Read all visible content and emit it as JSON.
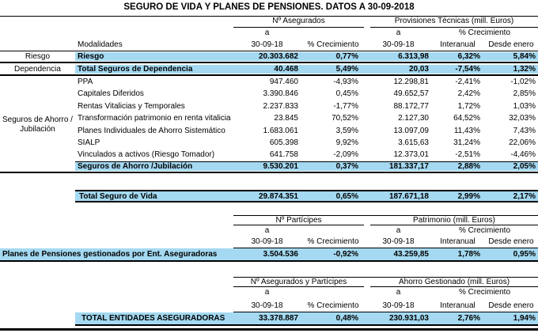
{
  "title": "SEGURO DE VIDA Y PLANES DE PENSIONES. DATOS A 30-09-2018",
  "colors": {
    "highlight": "#a4d9f1"
  },
  "columns": {
    "a": "a",
    "date": "30-09-18",
    "growth": "% Crecimiento",
    "interannual": "Interanual",
    "since_january": "Desde enero",
    "modalities": "Modalidades"
  },
  "life_table": {
    "group1": "Nº Asegurados",
    "group2": "Provisiones Técnicas (mill. Euros)",
    "side_labels": {
      "savings_line1": "Seguros de Ahorro /",
      "savings_line2": "Jubilación"
    },
    "rows": [
      {
        "side": "Riesgo",
        "label": "Riesgo",
        "highlight": true,
        "values": [
          "20.303.682",
          "0,77%",
          "6.313,98",
          "6,32%",
          "5,84%"
        ]
      },
      {
        "side": "Dependencia",
        "label": "Total Seguros de Dependencia",
        "highlight": true,
        "values": [
          "40.468",
          "5,49%",
          "20,03",
          "-7,54%",
          "1,32%"
        ]
      },
      {
        "label": "PPA",
        "values": [
          "947.460",
          "-4,93%",
          "12.298,81",
          "-2,41%",
          "-1,02%"
        ]
      },
      {
        "label": "Capitales Diferidos",
        "values": [
          "3.390.846",
          "0,45%",
          "49.652,57",
          "2,42%",
          "2,85%"
        ]
      },
      {
        "label": "Rentas Vitalicias y Temporales",
        "values": [
          "2.237.833",
          "-1,77%",
          "88.172,77",
          "1,72%",
          "1,03%"
        ]
      },
      {
        "label": "Transformación patrimonio en renta vitalicia",
        "values": [
          "23.845",
          "70,52%",
          "2.127,30",
          "64,52%",
          "32,03%"
        ]
      },
      {
        "label": "Planes Individuales de Ahorro Sistemático",
        "values": [
          "1.683.061",
          "3,59%",
          "13.097,09",
          "11,43%",
          "7,43%"
        ]
      },
      {
        "label": "SIALP",
        "values": [
          "605.398",
          "9,92%",
          "3.615,63",
          "31,24%",
          "22,06%"
        ]
      },
      {
        "label": "Vinculados a activos (Riesgo Tomador)",
        "values": [
          "641.758",
          "-2,09%",
          "12.373,01",
          "-2,51%",
          "-4,46%"
        ]
      },
      {
        "label": "Seguros de Ahorro /Jubilación",
        "highlight": true,
        "values": [
          "9.530.201",
          "0,37%",
          "181.337,17",
          "2,88%",
          "2,05%"
        ]
      }
    ],
    "total": {
      "label": "Total Seguro de Vida",
      "values": [
        "29.874.351",
        "0,65%",
        "187.671,18",
        "2,99%",
        "2,17%"
      ]
    }
  },
  "pensions_table": {
    "group1": "Nº Partícipes",
    "group2": "Patrimonio (mill. Euros)",
    "row": {
      "label": "Planes de Pensiones gestionados por Ent. Aseguradoras",
      "values": [
        "3.504.536",
        "-0,92%",
        "43.259,85",
        "1,78%",
        "0,95%"
      ]
    }
  },
  "total_table": {
    "group1": "Nº Asegurados y Partícipes",
    "group2": "Ahorro Gestionado (mill. Euros)",
    "row": {
      "label": "TOTAL ENTIDADES ASEGURADORAS",
      "values": [
        "33.378.887",
        "0,48%",
        "230.931,03",
        "2,76%",
        "1,94%"
      ]
    }
  }
}
